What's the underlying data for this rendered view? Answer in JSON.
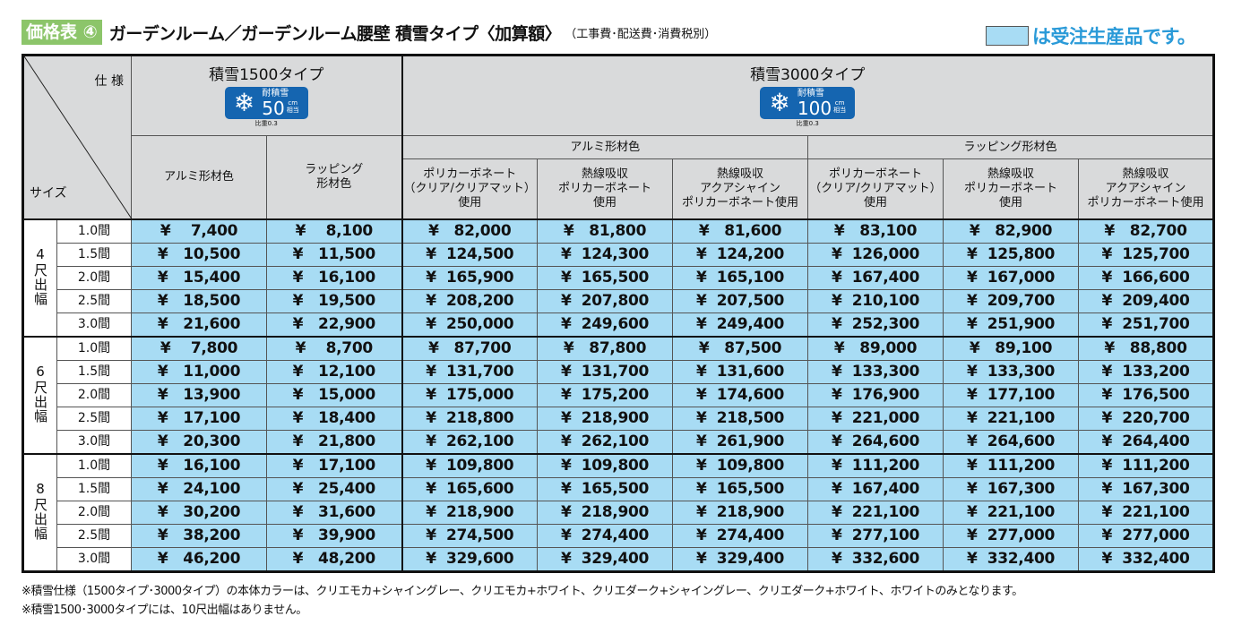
{
  "header": {
    "badge": "価格表 ④",
    "title": "ガーデンルーム／ガーデンルーム腰壁 積雪タイプ〈加算額〉",
    "subtitle": "（工事費･配送費･消費税別）",
    "legend": "は受注生産品です。",
    "legend_color": "#a8dcf4"
  },
  "corner": {
    "spec": "仕 様",
    "size": "サイズ"
  },
  "types": [
    {
      "name": "積雪1500タイプ",
      "badge_label": "耐積雪",
      "badge_value": "50",
      "badge_unit": "cm",
      "badge_unit2": "相当",
      "gravity": "比重0.3"
    },
    {
      "name": "積雪3000タイプ",
      "badge_label": "耐積雪",
      "badge_value": "100",
      "badge_unit": "cm",
      "badge_unit2": "相当",
      "gravity": "比重0.3"
    }
  ],
  "subgroups": [
    "アルミ形材色",
    "ラッピング形材色"
  ],
  "columns": [
    "アルミ形材色",
    "ラッピング\n形材色",
    "ポリカーボネート\n（クリア/クリアマット）\n使用",
    "熱線吸収\nポリカーボネート\n使用",
    "熱線吸収\nアクアシャイン\nポリカーボネート使用",
    "ポリカーボネート\n（クリア/クリアマット）\n使用",
    "熱線吸収\nポリカーボネート\n使用",
    "熱線吸収\nアクアシャイン\nポリカーボネート使用"
  ],
  "groups": [
    {
      "label": "4尺出幅",
      "rows": [
        {
          "size": "1.0間",
          "prices": [
            "7,400",
            "8,100",
            "82,000",
            "81,800",
            "81,600",
            "83,100",
            "82,900",
            "82,700"
          ]
        },
        {
          "size": "1.5間",
          "prices": [
            "10,500",
            "11,500",
            "124,500",
            "124,300",
            "124,200",
            "126,000",
            "125,800",
            "125,700"
          ]
        },
        {
          "size": "2.0間",
          "prices": [
            "15,400",
            "16,100",
            "165,900",
            "165,500",
            "165,100",
            "167,400",
            "167,000",
            "166,600"
          ]
        },
        {
          "size": "2.5間",
          "prices": [
            "18,500",
            "19,500",
            "208,200",
            "207,800",
            "207,500",
            "210,100",
            "209,700",
            "209,400"
          ]
        },
        {
          "size": "3.0間",
          "prices": [
            "21,600",
            "22,900",
            "250,000",
            "249,600",
            "249,400",
            "252,300",
            "251,900",
            "251,700"
          ]
        }
      ]
    },
    {
      "label": "6尺出幅",
      "rows": [
        {
          "size": "1.0間",
          "prices": [
            "7,800",
            "8,700",
            "87,700",
            "87,800",
            "87,500",
            "89,000",
            "89,100",
            "88,800"
          ]
        },
        {
          "size": "1.5間",
          "prices": [
            "11,000",
            "12,100",
            "131,700",
            "131,700",
            "131,600",
            "133,300",
            "133,300",
            "133,200"
          ]
        },
        {
          "size": "2.0間",
          "prices": [
            "13,900",
            "15,000",
            "175,000",
            "175,200",
            "174,600",
            "176,900",
            "177,100",
            "176,500"
          ]
        },
        {
          "size": "2.5間",
          "prices": [
            "17,100",
            "18,400",
            "218,800",
            "218,900",
            "218,500",
            "221,000",
            "221,100",
            "220,700"
          ]
        },
        {
          "size": "3.0間",
          "prices": [
            "20,300",
            "21,800",
            "262,100",
            "262,100",
            "261,900",
            "264,600",
            "264,600",
            "264,400"
          ]
        }
      ]
    },
    {
      "label": "8尺出幅",
      "rows": [
        {
          "size": "1.0間",
          "prices": [
            "16,100",
            "17,100",
            "109,800",
            "109,800",
            "109,800",
            "111,200",
            "111,200",
            "111,200"
          ]
        },
        {
          "size": "1.5間",
          "prices": [
            "24,100",
            "25,400",
            "165,600",
            "165,500",
            "165,500",
            "167,400",
            "167,300",
            "167,300"
          ]
        },
        {
          "size": "2.0間",
          "prices": [
            "30,200",
            "31,600",
            "218,900",
            "218,900",
            "218,900",
            "221,100",
            "221,100",
            "221,100"
          ]
        },
        {
          "size": "2.5間",
          "prices": [
            "38,200",
            "39,900",
            "274,500",
            "274,400",
            "274,400",
            "277,100",
            "277,000",
            "277,000"
          ]
        },
        {
          "size": "3.0間",
          "prices": [
            "46,200",
            "48,200",
            "329,600",
            "329,400",
            "329,400",
            "332,600",
            "332,400",
            "332,400"
          ]
        }
      ]
    }
  ],
  "currency": "¥",
  "notes": [
    "※積雪仕様（1500タイプ･3000タイプ）の本体カラーは、クリエモカ+シャイングレー、クリエモカ+ホワイト、クリエダーク+シャイングレー、クリエダーク+ホワイト、ホワイトのみとなります。",
    "※積雪1500･3000タイプには、10尺出幅はありません。"
  ]
}
